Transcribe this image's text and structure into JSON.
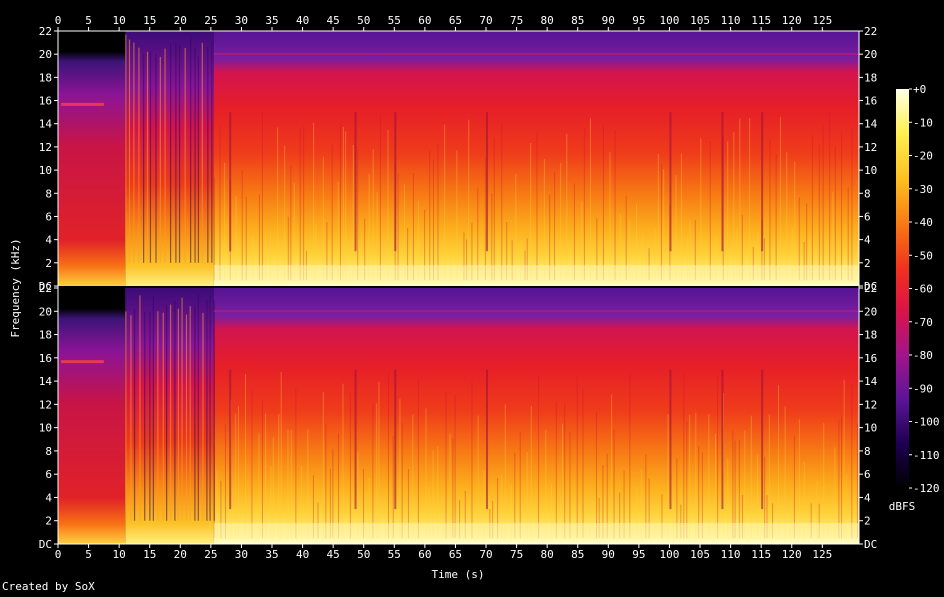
{
  "chart_data": {
    "type": "heatmap",
    "title": "",
    "xlabel": "Time (s)",
    "ylabel": "Frequency (kHz)",
    "xlim": [
      0,
      131
    ],
    "ylim_khz": [
      0,
      22
    ],
    "x_ticks": [
      0,
      5,
      10,
      15,
      20,
      25,
      30,
      35,
      40,
      45,
      50,
      55,
      60,
      65,
      70,
      75,
      80,
      85,
      90,
      95,
      100,
      105,
      110,
      115,
      120,
      125
    ],
    "y_tick_labels": [
      "DC",
      "2",
      "4",
      "6",
      "8",
      "10",
      "12",
      "14",
      "16",
      "18",
      "20",
      "22"
    ],
    "channels": 2,
    "colorbar": {
      "label": "dBFS",
      "ticks": [
        "+0",
        "-10",
        "-20",
        "-30",
        "-40",
        "-50",
        "-60",
        "-70",
        "-80",
        "-90",
        "-100",
        "-110",
        "-120"
      ],
      "range_db": [
        -120,
        0
      ]
    },
    "colormap_stops": [
      "#000000",
      "#1c0050",
      "#5a1496",
      "#a0148c",
      "#dc1446",
      "#f0321e",
      "#f87814",
      "#fcbe1e",
      "#fff050",
      "#ffffe6"
    ],
    "intro_segment_s": [
      0,
      11
    ],
    "transient_segment_s": [
      11,
      25.5
    ],
    "dense_segment_s": [
      25.5,
      131
    ]
  },
  "footer": {
    "credit": "Created by SoX"
  }
}
